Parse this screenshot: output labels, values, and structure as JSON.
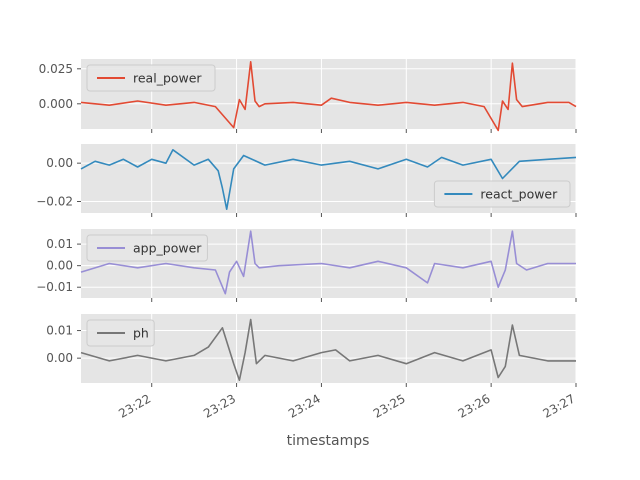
{
  "chart_data": {
    "type": "line",
    "xlabel": "timestamps",
    "x_ticks": [
      "23:22",
      "23:23",
      "23:24",
      "23:25",
      "23:26",
      "23:27"
    ],
    "x_range": [
      "23:21:10",
      "23:27:00"
    ],
    "grid": true,
    "panels": [
      {
        "series_name": "real_power",
        "color": "#E24A33",
        "legend_position": "upper-left",
        "ylim": [
          -0.018,
          0.032
        ],
        "yticks": [
          0.0,
          0.025
        ],
        "ytick_labels": [
          "0.000",
          "0.025"
        ],
        "x": [
          "23:21:10",
          "23:21:30",
          "23:21:50",
          "23:22:10",
          "23:22:30",
          "23:22:45",
          "23:22:58",
          "23:23:02",
          "23:23:06",
          "23:23:10",
          "23:23:13",
          "23:23:16",
          "23:23:20",
          "23:23:40",
          "23:24:00",
          "23:24:07",
          "23:24:20",
          "23:24:40",
          "23:25:00",
          "23:25:20",
          "23:25:40",
          "23:25:55",
          "23:26:05",
          "23:26:08",
          "23:26:12",
          "23:26:15",
          "23:26:18",
          "23:26:22",
          "23:26:40",
          "23:26:55",
          "23:27:00"
        ],
        "values": [
          0.001,
          -0.001,
          0.002,
          -0.001,
          0.001,
          -0.002,
          -0.017,
          0.003,
          -0.004,
          0.03,
          0.002,
          -0.002,
          0.0,
          0.001,
          -0.001,
          0.004,
          0.001,
          -0.001,
          0.001,
          -0.001,
          0.001,
          -0.002,
          -0.019,
          0.002,
          -0.004,
          0.029,
          0.003,
          -0.002,
          0.001,
          0.001,
          -0.002
        ]
      },
      {
        "series_name": "react_power",
        "color": "#348ABD",
        "legend_position": "lower-right",
        "ylim": [
          -0.026,
          0.01
        ],
        "yticks": [
          -0.02,
          0.0
        ],
        "ytick_labels": [
          "−0.02",
          "0.00"
        ],
        "x": [
          "23:21:10",
          "23:21:20",
          "23:21:30",
          "23:21:40",
          "23:21:50",
          "23:22:00",
          "23:22:10",
          "23:22:15",
          "23:22:30",
          "23:22:40",
          "23:22:47",
          "23:22:50",
          "23:22:53",
          "23:22:58",
          "23:23:05",
          "23:23:20",
          "23:23:40",
          "23:24:00",
          "23:24:20",
          "23:24:40",
          "23:25:00",
          "23:25:15",
          "23:25:25",
          "23:25:40",
          "23:26:00",
          "23:26:08",
          "23:26:20",
          "23:26:40",
          "23:27:00"
        ],
        "values": [
          -0.003,
          0.001,
          -0.001,
          0.002,
          -0.002,
          0.002,
          0.0,
          0.007,
          -0.001,
          0.002,
          -0.004,
          -0.013,
          -0.024,
          -0.003,
          0.004,
          -0.001,
          0.002,
          -0.001,
          0.001,
          -0.003,
          0.002,
          -0.002,
          0.003,
          -0.001,
          0.002,
          -0.008,
          0.001,
          0.002,
          0.003
        ]
      },
      {
        "series_name": "app_power",
        "color": "#988ED5",
        "legend_position": "upper-left",
        "ylim": [
          -0.015,
          0.017
        ],
        "yticks": [
          -0.01,
          0.0,
          0.01
        ],
        "ytick_labels": [
          "−0.01",
          "0.00",
          "0.01"
        ],
        "x": [
          "23:21:10",
          "23:21:30",
          "23:21:50",
          "23:22:10",
          "23:22:30",
          "23:22:45",
          "23:22:52",
          "23:22:55",
          "23:23:00",
          "23:23:05",
          "23:23:10",
          "23:23:13",
          "23:23:16",
          "23:23:30",
          "23:24:00",
          "23:24:20",
          "23:24:40",
          "23:25:00",
          "23:25:15",
          "23:25:20",
          "23:25:40",
          "23:26:00",
          "23:26:05",
          "23:26:10",
          "23:26:15",
          "23:26:18",
          "23:26:25",
          "23:26:40",
          "23:27:00"
        ],
        "values": [
          -0.003,
          0.001,
          -0.001,
          0.001,
          -0.001,
          -0.002,
          -0.013,
          -0.003,
          0.002,
          -0.005,
          0.016,
          0.001,
          -0.001,
          0.0,
          0.001,
          -0.001,
          0.002,
          -0.001,
          -0.008,
          0.001,
          -0.001,
          0.002,
          -0.01,
          -0.002,
          0.016,
          0.001,
          -0.002,
          0.001,
          0.001
        ]
      },
      {
        "series_name": "ph",
        "color": "#777777",
        "legend_position": "upper-left",
        "ylim": [
          -0.009,
          0.016
        ],
        "yticks": [
          0.0,
          0.01
        ],
        "ytick_labels": [
          "0.00",
          "0.01"
        ],
        "x": [
          "23:21:10",
          "23:21:30",
          "23:21:50",
          "23:22:10",
          "23:22:30",
          "23:22:40",
          "23:22:50",
          "23:22:58",
          "23:23:02",
          "23:23:06",
          "23:23:10",
          "23:23:14",
          "23:23:20",
          "23:23:40",
          "23:24:00",
          "23:24:10",
          "23:24:20",
          "23:24:40",
          "23:25:00",
          "23:25:20",
          "23:25:40",
          "23:26:00",
          "23:26:05",
          "23:26:10",
          "23:26:15",
          "23:26:20",
          "23:26:40",
          "23:27:00"
        ],
        "values": [
          0.002,
          -0.001,
          0.001,
          -0.001,
          0.001,
          0.004,
          0.011,
          -0.002,
          -0.008,
          0.002,
          0.014,
          -0.002,
          0.001,
          -0.001,
          0.002,
          0.003,
          -0.001,
          0.001,
          -0.002,
          0.002,
          -0.001,
          0.003,
          -0.007,
          -0.003,
          0.012,
          0.001,
          -0.001,
          -0.001
        ]
      }
    ]
  }
}
